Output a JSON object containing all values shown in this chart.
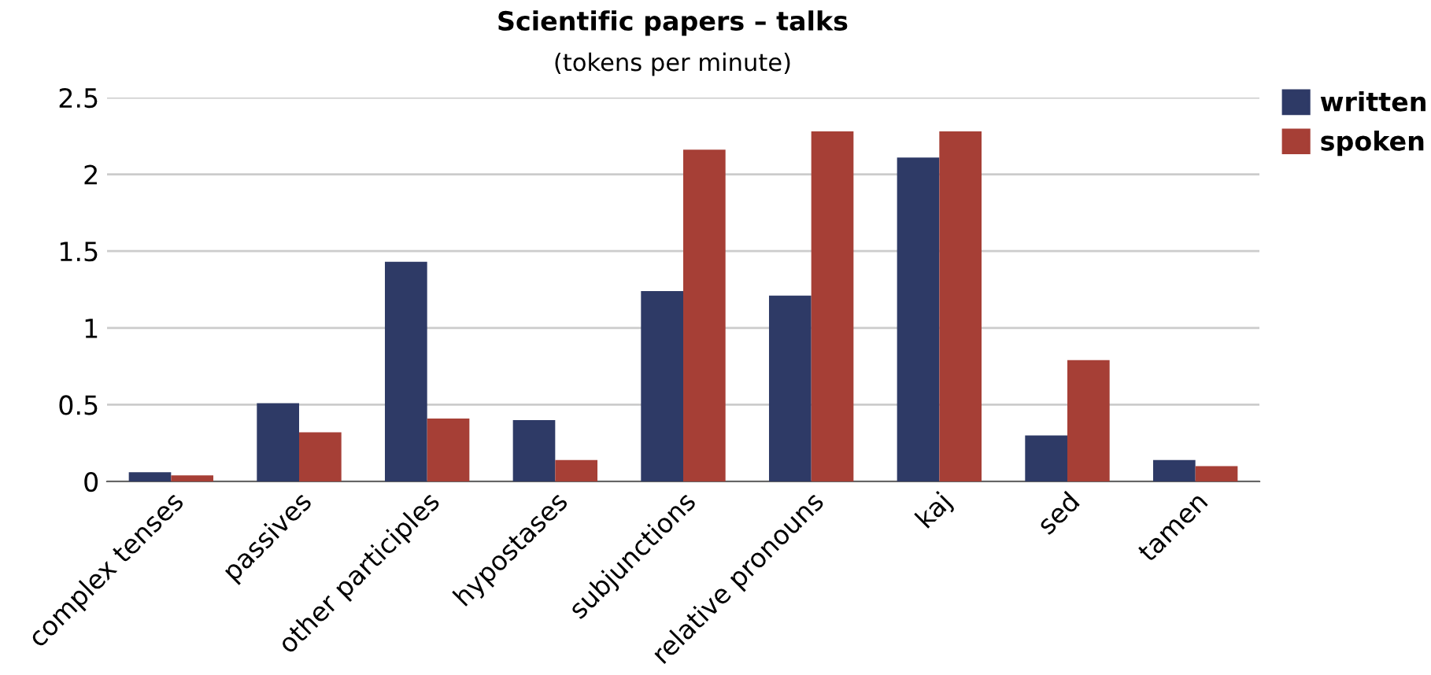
{
  "chart_data": {
    "type": "bar",
    "title": "Scientific papers – talks",
    "subtitle": "(tokens per minute)",
    "categories": [
      "complex tenses",
      "passives",
      "other participles",
      "hypostases",
      "subjunctions",
      "relative pronouns",
      "kaj",
      "sed",
      "tamen"
    ],
    "series": [
      {
        "name": "written",
        "color": "#2e3a66",
        "values": [
          0.06,
          0.51,
          1.43,
          0.4,
          1.24,
          1.21,
          2.11,
          0.3,
          0.14
        ]
      },
      {
        "name": "spoken",
        "color": "#a63f36",
        "values": [
          0.04,
          0.32,
          0.41,
          0.14,
          2.16,
          2.28,
          2.28,
          0.79,
          0.1
        ]
      }
    ],
    "ylim": [
      0,
      2.5
    ],
    "yticks": [
      0,
      0.5,
      1,
      1.5,
      2,
      2.5
    ],
    "grid": "y",
    "legend": "top right"
  }
}
